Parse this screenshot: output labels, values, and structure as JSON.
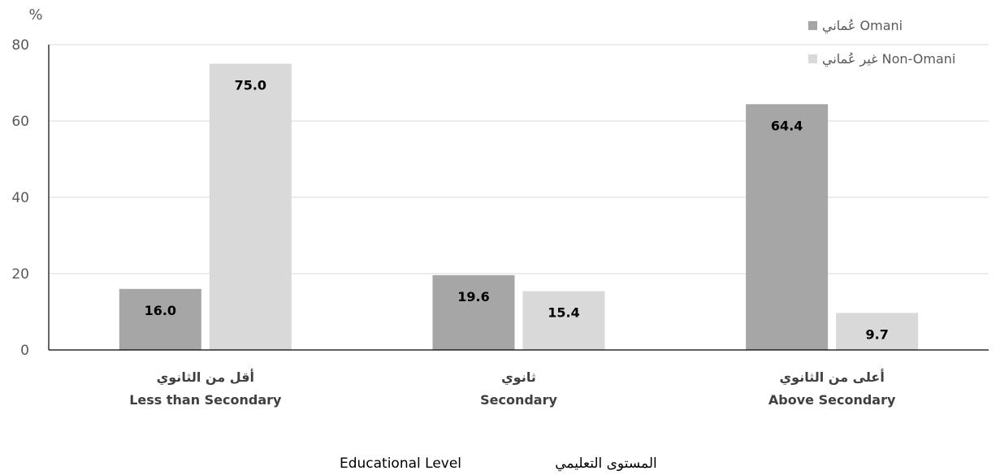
{
  "chart_data": {
    "type": "bar",
    "y_unit": "%",
    "ylim": [
      0,
      80
    ],
    "yticks": [
      0,
      20,
      40,
      60,
      80
    ],
    "grid": true,
    "legend_position": "top-right",
    "categories": [
      {
        "ar": "أقل من الثانوي",
        "en": "Less than Secondary"
      },
      {
        "ar": "ثانوي",
        "en": "Secondary"
      },
      {
        "ar": "أعلى من الثانوي",
        "en": "Above Secondary"
      }
    ],
    "series": [
      {
        "name": "عُماني Omani",
        "color": "#a6a6a6",
        "values": [
          16.0,
          19.6,
          64.4
        ]
      },
      {
        "name": "غير عُماني Non-Omani",
        "color": "#d9d9d9",
        "values": [
          75.0,
          15.4,
          9.7
        ]
      }
    ],
    "xlabel": {
      "en": "Educational Level",
      "ar": "المستوى التعليمي"
    }
  }
}
